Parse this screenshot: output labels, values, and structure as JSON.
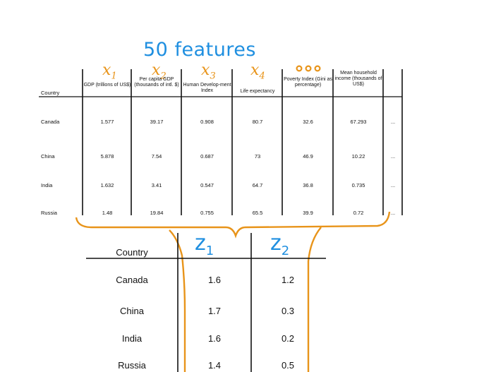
{
  "annotation": {
    "title": "50 features",
    "feature_labels": [
      "x1",
      "x2",
      "x3",
      "x4",
      "•••"
    ],
    "z_labels": [
      "z1",
      "z2"
    ],
    "colors": {
      "blue_ink": "#1f8fe0",
      "orange_ink": "#e8941a"
    }
  },
  "top_table": {
    "country_header": "Country",
    "headers": [
      "GDP (trillions of US$)",
      "Per capita GDP (thousands of intl. $)",
      "Human Develop-ment Index",
      "Life expectancy",
      "Poverty Index (Gini as percentage)",
      "Mean household income (thousands of US$)"
    ],
    "ellipsis": "...",
    "rows": [
      {
        "country": "Canada",
        "values": [
          "1.577",
          "39.17",
          "0.908",
          "80.7",
          "32.6",
          "67.293"
        ]
      },
      {
        "country": "China",
        "values": [
          "5.878",
          "7.54",
          "0.687",
          "73",
          "46.9",
          "10.22"
        ]
      },
      {
        "country": "India",
        "values": [
          "1.632",
          "3.41",
          "0.547",
          "64.7",
          "36.8",
          "0.735"
        ]
      },
      {
        "country": "Russia",
        "values": [
          "1.48",
          "19.84",
          "0.755",
          "65.5",
          "39.9",
          "0.72"
        ]
      }
    ]
  },
  "bottom_table": {
    "country_header": "Country",
    "rows": [
      {
        "country": "Canada",
        "z1": "1.6",
        "z2": "1.2"
      },
      {
        "country": "China",
        "z1": "1.7",
        "z2": "0.3"
      },
      {
        "country": "India",
        "z1": "1.6",
        "z2": "0.2"
      },
      {
        "country": "Russia",
        "z1": "1.4",
        "z2": "0.5"
      }
    ]
  }
}
